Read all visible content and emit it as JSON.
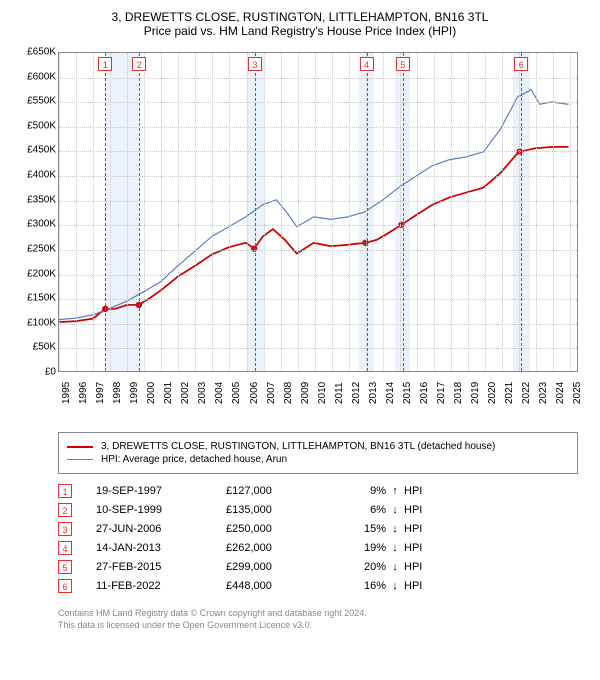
{
  "title_line1": "3, DREWETTS CLOSE, RUSTINGTON, LITTLEHAMPTON, BN16 3TL",
  "title_line2": "Price paid vs. HM Land Registry's House Price Index (HPI)",
  "chart": {
    "type": "line",
    "background_color": "#ffffff",
    "plot_border_color": "#888888",
    "grid_color": "#c8c8c8",
    "marker_line_color": "#e03030",
    "shade_color": "rgba(100,150,220,0.12)",
    "ylim": [
      0,
      650
    ],
    "ytick_step": 50,
    "y_tick_labels": [
      "£0",
      "£50K",
      "£100K",
      "£150K",
      "£200K",
      "£250K",
      "£300K",
      "£350K",
      "£400K",
      "£450K",
      "£500K",
      "£550K",
      "£600K",
      "£650K"
    ],
    "xlim": [
      1995,
      2025.5
    ],
    "x_ticks": [
      1995,
      1996,
      1997,
      1998,
      1999,
      2000,
      2001,
      2002,
      2003,
      2004,
      2005,
      2006,
      2007,
      2008,
      2009,
      2010,
      2011,
      2012,
      2013,
      2014,
      2015,
      2016,
      2017,
      2018,
      2019,
      2020,
      2021,
      2022,
      2023,
      2024,
      2025
    ],
    "series": [
      {
        "name": "property",
        "color": "#d00000",
        "width": 1.8,
        "points": [
          [
            1995.0,
            100
          ],
          [
            1996.0,
            102
          ],
          [
            1997.0,
            107
          ],
          [
            1997.72,
            127
          ],
          [
            1998.3,
            127
          ],
          [
            1999.0,
            135
          ],
          [
            1999.7,
            135
          ],
          [
            2000.3,
            148
          ],
          [
            2001.0,
            165
          ],
          [
            2002.0,
            193
          ],
          [
            2003.0,
            215
          ],
          [
            2004.0,
            238
          ],
          [
            2005.0,
            253
          ],
          [
            2006.0,
            262
          ],
          [
            2006.49,
            250
          ],
          [
            2007.0,
            275
          ],
          [
            2007.6,
            290
          ],
          [
            2008.3,
            268
          ],
          [
            2009.0,
            240
          ],
          [
            2010.0,
            262
          ],
          [
            2011.0,
            255
          ],
          [
            2012.0,
            258
          ],
          [
            2013.04,
            262
          ],
          [
            2013.7,
            268
          ],
          [
            2014.3,
            280
          ],
          [
            2015.16,
            299
          ],
          [
            2016.0,
            318
          ],
          [
            2017.0,
            340
          ],
          [
            2018.0,
            355
          ],
          [
            2019.0,
            365
          ],
          [
            2020.0,
            375
          ],
          [
            2021.0,
            405
          ],
          [
            2022.0,
            445
          ],
          [
            2022.11,
            448
          ],
          [
            2023.0,
            455
          ],
          [
            2024.0,
            458
          ],
          [
            2025.0,
            458
          ]
        ]
      },
      {
        "name": "hpi",
        "color": "#5a7fbf",
        "width": 1.2,
        "points": [
          [
            1995.0,
            105
          ],
          [
            1996.0,
            108
          ],
          [
            1997.0,
            115
          ],
          [
            1998.0,
            128
          ],
          [
            1999.0,
            143
          ],
          [
            2000.0,
            162
          ],
          [
            2001.0,
            183
          ],
          [
            2002.0,
            215
          ],
          [
            2003.0,
            245
          ],
          [
            2004.0,
            275
          ],
          [
            2005.0,
            295
          ],
          [
            2006.0,
            315
          ],
          [
            2007.0,
            340
          ],
          [
            2007.8,
            350
          ],
          [
            2008.5,
            320
          ],
          [
            2009.0,
            295
          ],
          [
            2010.0,
            315
          ],
          [
            2011.0,
            310
          ],
          [
            2012.0,
            315
          ],
          [
            2013.0,
            325
          ],
          [
            2014.0,
            348
          ],
          [
            2015.0,
            375
          ],
          [
            2016.0,
            398
          ],
          [
            2017.0,
            420
          ],
          [
            2018.0,
            432
          ],
          [
            2019.0,
            438
          ],
          [
            2020.0,
            448
          ],
          [
            2021.0,
            495
          ],
          [
            2022.0,
            560
          ],
          [
            2022.8,
            575
          ],
          [
            2023.3,
            545
          ],
          [
            2024.0,
            550
          ],
          [
            2025.0,
            545
          ]
        ]
      }
    ],
    "shaded_ranges": [
      [
        1997.72,
        1999.7
      ],
      [
        2006.0,
        2007.0
      ],
      [
        2012.6,
        2013.5
      ],
      [
        2014.7,
        2015.6
      ],
      [
        2021.6,
        2022.6
      ]
    ],
    "markers": [
      {
        "n": "1",
        "x": 1997.72,
        "date": "19-SEP-1997",
        "price": "£127,000",
        "pct": "9%",
        "dir": "↑",
        "y": 127
      },
      {
        "n": "2",
        "x": 1999.7,
        "date": "10-SEP-1999",
        "price": "£135,000",
        "pct": "6%",
        "dir": "↓",
        "y": 135
      },
      {
        "n": "3",
        "x": 2006.49,
        "date": "27-JUN-2006",
        "price": "£250,000",
        "pct": "15%",
        "dir": "↓",
        "y": 250
      },
      {
        "n": "4",
        "x": 2013.04,
        "date": "14-JAN-2013",
        "price": "£262,000",
        "pct": "19%",
        "dir": "↓",
        "y": 262
      },
      {
        "n": "5",
        "x": 2015.16,
        "date": "27-FEB-2015",
        "price": "£299,000",
        "pct": "20%",
        "dir": "↓",
        "y": 299
      },
      {
        "n": "6",
        "x": 2022.11,
        "date": "11-FEB-2022",
        "price": "£448,000",
        "pct": "16%",
        "dir": "↓",
        "y": 448
      }
    ]
  },
  "legend": [
    {
      "color": "#d00000",
      "width": 2,
      "label": "3, DREWETTS CLOSE, RUSTINGTON, LITTLEHAMPTON, BN16 3TL (detached house)"
    },
    {
      "color": "#5a7fbf",
      "width": 1,
      "label": "HPI: Average price, detached house, Arun"
    }
  ],
  "hpi_label": "HPI",
  "footer_line1": "Contains HM Land Registry data © Crown copyright and database right 2024.",
  "footer_line2": "This data is licensed under the Open Government Licence v3.0."
}
